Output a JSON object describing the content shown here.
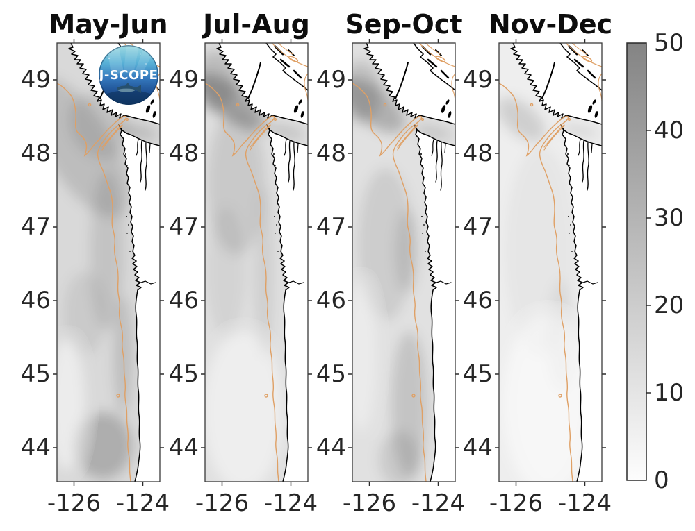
{
  "figure": {
    "panels": [
      {
        "title": "May-Jun"
      },
      {
        "title": "Jul-Aug"
      },
      {
        "title": "Sep-Oct"
      },
      {
        "title": "Nov-Dec"
      }
    ],
    "axes": {
      "x_ticks": [
        "-126",
        "-124"
      ],
      "y_ticks": [
        "49",
        "48",
        "47",
        "46",
        "45",
        "44"
      ]
    },
    "colorbar": {
      "ticks": [
        "50",
        "40",
        "30",
        "20",
        "10",
        "0"
      ]
    },
    "logo": {
      "text": "J-SCOPE"
    },
    "colors": {
      "contour": "#dfa065",
      "coastline": "#000000",
      "colorbar_top": "#848484",
      "colorbar_bottom": "#fdfdfd",
      "label": "#262626",
      "title": "#0d0d0d"
    }
  },
  "chart_data": {
    "type": "heatmap",
    "panels": [
      "May-Jun",
      "Jul-Aug",
      "Sep-Oct",
      "Nov-Dec"
    ],
    "title": "",
    "xlabel": "",
    "ylabel": "",
    "x_ticks": [
      -126,
      -124
    ],
    "y_ticks": [
      49,
      48,
      47,
      46,
      45,
      44
    ],
    "xlim": [
      -126.5,
      -123.5
    ],
    "ylim": [
      43.6,
      49.5
    ],
    "colorbar": {
      "min": 0,
      "max": 50,
      "ticks": [
        0,
        10,
        20,
        30,
        40,
        50
      ],
      "colormap": "white-to-gray"
    },
    "overlays": [
      "black coastline (Vancouver Island, Washington, Oregon)",
      "tan shelf-break isobath contour",
      "J-SCOPE circular logo in first panel"
    ],
    "description": "Four bimonthly maps of a gridded ocean field off the U.S. Pacific Northwest shaded 0-50 in grays; shading is moderate-dark in May-Jun through Sep-Oct (darkest along the northern shelf and nearshore) and very light in Nov-Dec."
  }
}
